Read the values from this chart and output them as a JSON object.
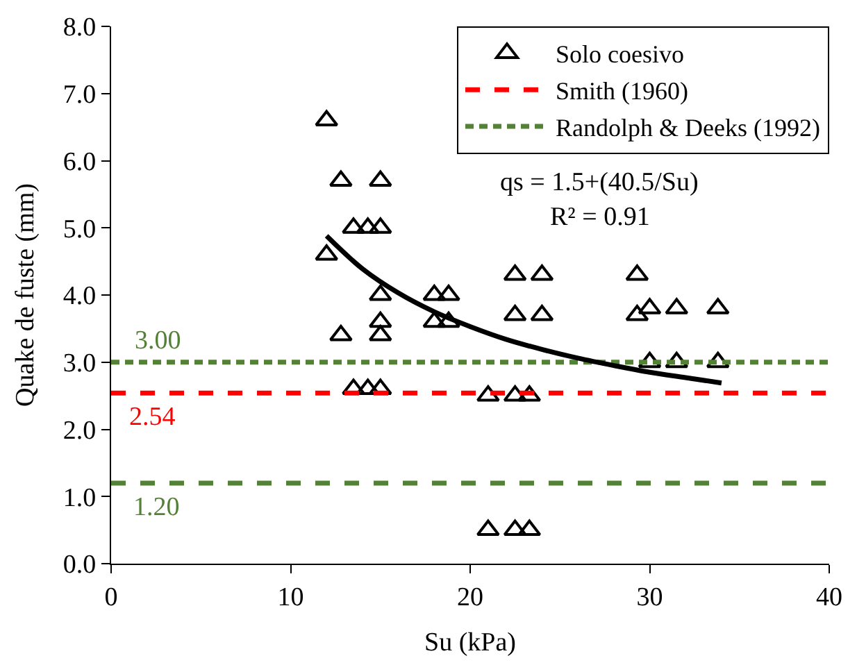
{
  "chart_data": {
    "type": "scatter",
    "xlabel": "Su (kPa)",
    "ylabel": "Quake de fuste (mm)",
    "xlim": [
      0,
      40
    ],
    "xticks": [
      0,
      10,
      20,
      30,
      40
    ],
    "ylim": [
      0,
      8
    ],
    "yticks": [
      {
        "value": 0,
        "label": "0.0"
      },
      {
        "value": 1,
        "label": "1.0"
      },
      {
        "value": 2,
        "label": "2.0"
      },
      {
        "value": 3,
        "label": "3.0"
      },
      {
        "value": 4,
        "label": "4.0"
      },
      {
        "value": 5,
        "label": "5.0"
      },
      {
        "value": 6,
        "label": "6.0"
      },
      {
        "value": 7,
        "label": "7.0"
      },
      {
        "value": 8,
        "label": "8.0"
      }
    ],
    "grid": false,
    "legend": "top right",
    "series": [
      {
        "name": "Solo coesivo",
        "marker": "triangle",
        "color": "#000000",
        "x": [
          12.0,
          12.0,
          12.8,
          15.0,
          13.5,
          14.3,
          15.0,
          15.0,
          15.0,
          15.0,
          12.8,
          13.5,
          14.3,
          15.0,
          18.0,
          18.8,
          18.0,
          18.8,
          21.0,
          22.5,
          23.3,
          21.0,
          22.5,
          23.3,
          22.5,
          24.0,
          22.5,
          24.0,
          29.3,
          29.3,
          30.0,
          31.5,
          33.8,
          30.0,
          31.5,
          33.8
        ],
        "values": [
          6.6,
          4.6,
          5.7,
          5.7,
          5.0,
          5.0,
          5.0,
          4.0,
          3.6,
          3.4,
          3.4,
          2.6,
          2.6,
          2.6,
          4.0,
          4.0,
          3.6,
          3.6,
          2.5,
          2.5,
          2.5,
          0.5,
          0.5,
          0.5,
          4.3,
          4.3,
          3.7,
          3.7,
          4.3,
          3.7,
          3.8,
          3.8,
          3.8,
          3.0,
          3.0,
          3.0
        ]
      },
      {
        "name": "Smith (1960)",
        "type": "line",
        "line_style": "dashed",
        "color": "#ff0000",
        "x": [
          0,
          40
        ],
        "values": [
          2.54,
          2.54
        ]
      },
      {
        "name": "Randolph & Deeks (1992)",
        "type": "line",
        "line_style": "dotted",
        "color": "#538135",
        "x": [
          0,
          40
        ],
        "values": [
          3.0,
          3.0
        ]
      },
      {
        "type": "line",
        "line_style": "dashed",
        "color": "#538135",
        "x": [
          0,
          40
        ],
        "values": [
          1.2,
          1.2
        ]
      },
      {
        "type": "line",
        "line_style": "solid",
        "color": "#000000",
        "x": [
          12,
          14,
          16,
          18,
          20,
          22,
          24,
          26,
          28,
          30,
          32,
          34
        ],
        "values": [
          4.88,
          4.39,
          4.03,
          3.75,
          3.53,
          3.34,
          3.19,
          3.06,
          2.95,
          2.85,
          2.77,
          2.69
        ]
      }
    ],
    "annotations": [
      "qs = 1.5+(40.5/Su)",
      "R² = 0.91",
      {
        "text": "3.00",
        "x": 2.6,
        "y": 3.0
      },
      {
        "text": "2.54",
        "x": 2.3,
        "y": 2.54
      },
      {
        "text": "1.20",
        "x": 2.5,
        "y": 1.2
      }
    ]
  }
}
